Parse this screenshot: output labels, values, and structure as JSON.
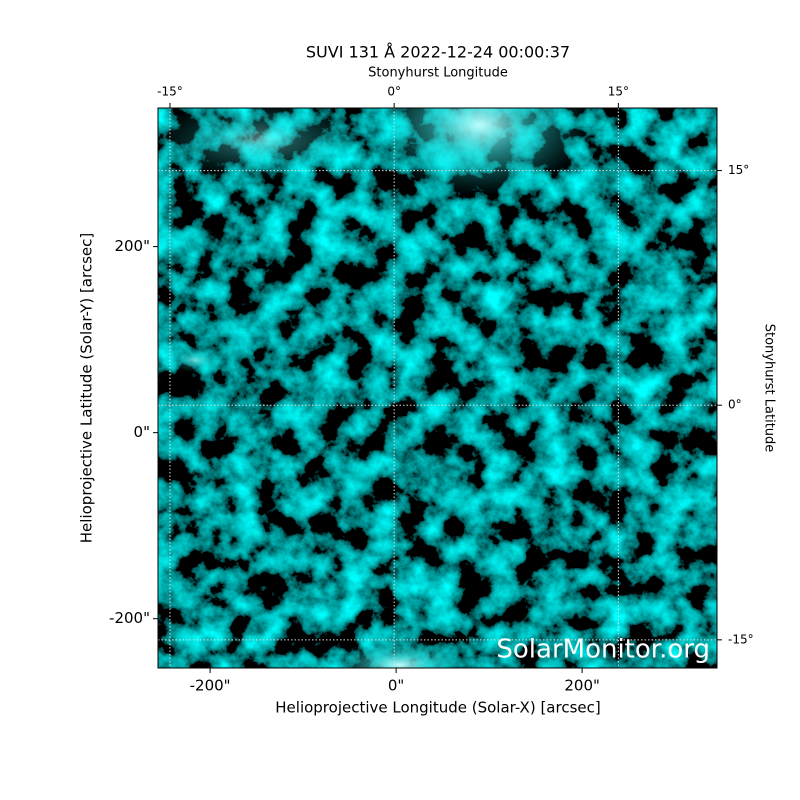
{
  "chart_data": {
    "type": "image",
    "title": "SUVI 131 Å 2022-12-24 00:00:37",
    "xlabel": "Helioprojective Longitude (Solar-X) [arcsec]",
    "ylabel": "Helioprojective Latitude (Solar-Y) [arcsec]",
    "x2label": "Stonyhurst Longitude",
    "y2label": "Stonyhurst Latitude",
    "watermark": "SolarMonitor.org",
    "color": "#00c8c8",
    "grid": true,
    "xlim": [
      -256,
      345
    ],
    "ylim": [
      -253,
      349
    ],
    "xticks": [
      {
        "value": -200,
        "label": "-200\""
      },
      {
        "value": 0,
        "label": "0\""
      },
      {
        "value": 200,
        "label": "200\""
      }
    ],
    "yticks": [
      {
        "value": -200,
        "label": "-200\""
      },
      {
        "value": 0,
        "label": "0\""
      },
      {
        "value": 200,
        "label": "200\""
      }
    ],
    "x2lim": [
      -15.8,
      21.6
    ],
    "x2ticks": [
      {
        "value": -15,
        "label": "-15°"
      },
      {
        "value": 0,
        "label": "0°"
      },
      {
        "value": 15,
        "label": "15°"
      }
    ],
    "y2lim": [
      -16.8,
      19.0
    ],
    "y2ticks": [
      {
        "value": -15,
        "label": "-15°"
      },
      {
        "value": 0,
        "label": "0°"
      },
      {
        "value": 15,
        "label": "15°"
      }
    ]
  }
}
